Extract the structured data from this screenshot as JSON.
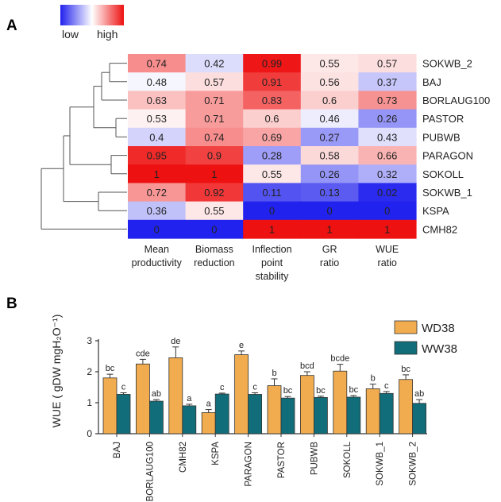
{
  "panel_a_label": "A",
  "panel_b_label": "B",
  "chart_data": [
    {
      "type": "heatmap",
      "color_scale": {
        "low_label": "low",
        "high_label": "high",
        "low_color": "#2222ee",
        "mid_color": "#ffffff",
        "high_color": "#ee1111"
      },
      "rows": [
        "SOKWB_2",
        "BAJ",
        "BORLAUG100",
        "PASTOR",
        "PUBWB",
        "PARAGON",
        "SOKOLL",
        "SOKWB_1",
        "KSPA",
        "CMH82"
      ],
      "columns": [
        [
          "Mean",
          "productivity"
        ],
        [
          "Biomass",
          "reduction"
        ],
        [
          "Inflection",
          "point",
          "stability"
        ],
        [
          "GR",
          "ratio"
        ],
        [
          "WUE",
          "ratio"
        ]
      ],
      "values": [
        [
          0.74,
          0.42,
          0.99,
          0.55,
          0.57
        ],
        [
          0.48,
          0.57,
          0.91,
          0.56,
          0.37
        ],
        [
          0.63,
          0.71,
          0.83,
          0.6,
          0.73
        ],
        [
          0.53,
          0.71,
          0.6,
          0.46,
          0.26
        ],
        [
          0.4,
          0.74,
          0.69,
          0.27,
          0.43
        ],
        [
          0.95,
          0.9,
          0.28,
          0.58,
          0.66
        ],
        [
          1,
          1,
          0.55,
          0.26,
          0.32
        ],
        [
          0.72,
          0.92,
          0.11,
          0.13,
          0.02
        ],
        [
          0.36,
          0.55,
          0,
          0,
          0
        ],
        [
          0,
          0,
          1,
          1,
          1
        ]
      ],
      "labels": [
        [
          "0.74",
          "0.42",
          "0.99",
          "0.55",
          "0.57"
        ],
        [
          "0.48",
          "0.57",
          "0.91",
          "0.56",
          "0.37"
        ],
        [
          "0.63",
          "0.71",
          "0.83",
          "0.6",
          "0.73"
        ],
        [
          "0.53",
          "0.71",
          "0.6",
          "0.46",
          "0.26"
        ],
        [
          "0.4",
          "0.74",
          "0.69",
          "0.27",
          "0.43"
        ],
        [
          "0.95",
          "0.9",
          "0.28",
          "0.58",
          "0.66"
        ],
        [
          "1",
          "1",
          "0.55",
          "0.26",
          "0.32"
        ],
        [
          "0.72",
          "0.92",
          "0.11",
          "0.13",
          "0.02"
        ],
        [
          "0.36",
          "0.55",
          "0",
          "0",
          "0"
        ],
        [
          "0",
          "0",
          "1",
          "1",
          "1"
        ]
      ],
      "dendrogram": true
    },
    {
      "type": "bar",
      "categories": [
        "BAJ",
        "BORLAUG100",
        "CMH82",
        "KSPA",
        "PARAGON",
        "PASTOR",
        "PUBWB",
        "SOKOLL",
        "SOKWB_1",
        "SOKWB_2"
      ],
      "ylabel": "WUE ( gDW mgH₂O⁻¹)",
      "ylim": [
        0,
        3
      ],
      "yticks": [
        "0",
        "1",
        "2",
        "3"
      ],
      "legend_position": "top-right",
      "series": [
        {
          "name": "WD38",
          "color": "#f0ac4f",
          "values": [
            1.8,
            2.25,
            2.45,
            0.68,
            2.55,
            1.55,
            1.88,
            2.02,
            1.45,
            1.75
          ],
          "errors": [
            0.12,
            0.15,
            0.35,
            0.1,
            0.12,
            0.22,
            0.12,
            0.22,
            0.15,
            0.15
          ],
          "letters": [
            "bc",
            "cde",
            "de",
            "a",
            "e",
            "b",
            "bcd",
            "bcde",
            "b",
            "bc"
          ]
        },
        {
          "name": "WW38",
          "color": "#116d79",
          "values": [
            1.27,
            1.05,
            0.9,
            1.28,
            1.27,
            1.15,
            1.17,
            1.18,
            1.3,
            0.98
          ],
          "errors": [
            0.05,
            0.05,
            0.05,
            0.03,
            0.05,
            0.05,
            0.04,
            0.05,
            0.06,
            0.12
          ],
          "letters": [
            "c",
            "ab",
            "a",
            "c",
            "c",
            "bc",
            "bc",
            "bc",
            "c",
            "ab"
          ]
        }
      ]
    }
  ]
}
